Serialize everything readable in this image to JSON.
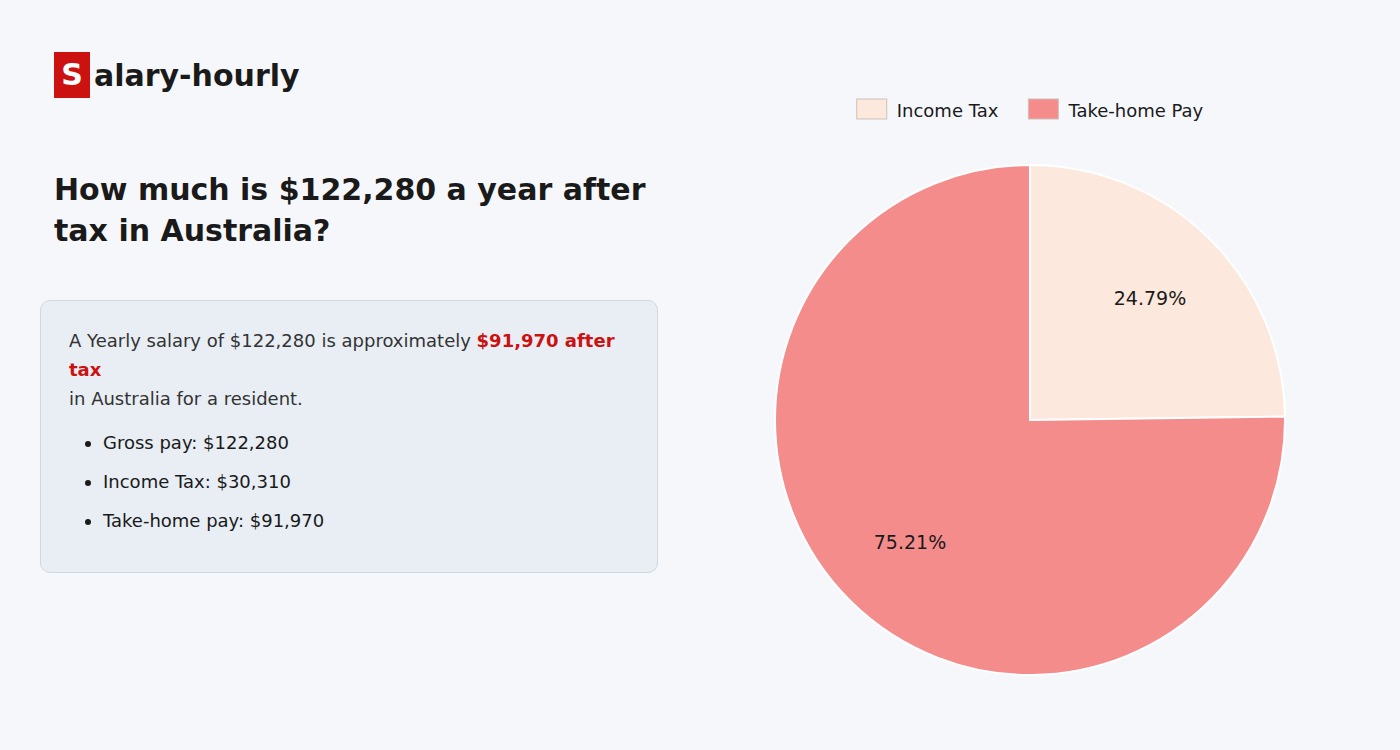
{
  "chart_data": {
    "type": "pie",
    "title": "How much is $122,280 a year after tax in Australia?",
    "annotations": [
      {
        "text": "S",
        "color": "#cc1111"
      },
      {
        "text": "alary-hourly"
      },
      {
        "text": "A Yearly salary of $122,280 is approximately "
      },
      {
        "text": "$91,970 after tax",
        "color": "#cc1111"
      },
      {
        "text": "in Australia for a resident."
      },
      {
        "text": "Gross pay: $122,280"
      },
      {
        "text": "Income Tax: $30,310"
      },
      {
        "text": "Take-home pay: $91,970"
      }
    ],
    "categories": [
      "Income Tax",
      "Take-home Pay"
    ],
    "values": [
      24.79,
      75.21
    ],
    "value_labels": [
      "24.79%",
      "75.21%"
    ],
    "colors": [
      "#fce8dc",
      "#f48c8c"
    ],
    "data_labels": true,
    "legend": "top"
  }
}
